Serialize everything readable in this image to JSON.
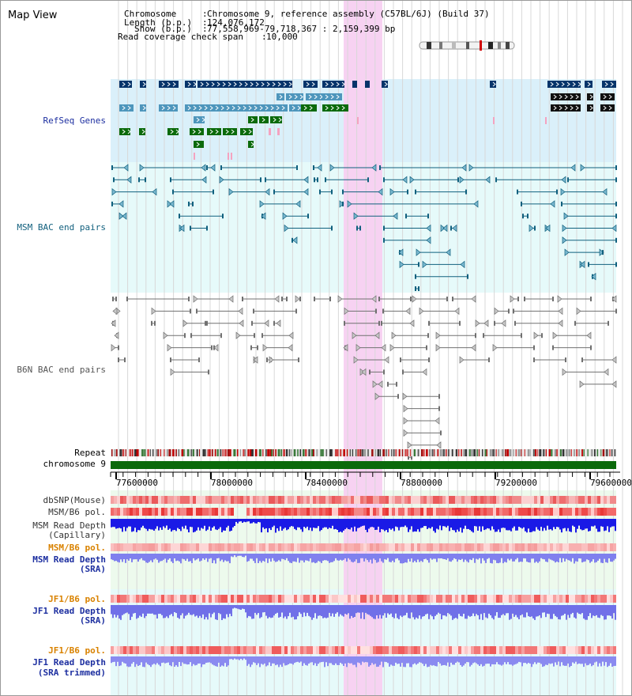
{
  "page": {
    "title": "Map View"
  },
  "header": {
    "chromosome_label": "Chromosome",
    "chromosome_value": "Chromosome 9, reference assembly (C57BL/6J) (Build 37)",
    "length_label": "Length (b.p.)",
    "length_value": "124,076,172",
    "show_label": "Show (b.p.)",
    "show_value": "77,558,969-79,718,367 : 2,159,399 bp",
    "coverage_label": "Read coverage check span",
    "coverage_value": "10,000"
  },
  "tracks": {
    "refseq": "RefSeq Genes",
    "msm_bac": "MSM BAC end pairs",
    "b6n_bac": "B6N BAC end pairs",
    "repeat": "Repeat",
    "chromosome": "chromosome 9",
    "dbsnp": "dbSNP(Mouse)",
    "msm_b6_pol_1": "MSM/B6 pol.",
    "msm_depth_cap": [
      "MSM Read Depth",
      "(Capillary)"
    ],
    "msm_b6_pol_2": "MSM/B6 pol.",
    "msm_depth_sra": [
      "MSM Read Depth",
      "(SRA)"
    ],
    "jf1_b6_pol_1": "JF1/B6 pol.",
    "jf1_depth_sra": [
      "JF1 Read Depth",
      "(SRA)"
    ],
    "jf1_b6_pol_2": "JF1/B6 pol.",
    "jf1_depth_trim": [
      "JF1 Read Depth",
      "(SRA trimmed)"
    ]
  },
  "axis": {
    "ticks": [
      "77600000",
      "78000000",
      "78400000",
      "78800000",
      "79200000",
      "79600000"
    ]
  },
  "colors": {
    "refseq_bg": "#daf0fa",
    "msm_bg": "#e6fafa",
    "depth_bg": "#edfaed",
    "highlight": "#f7d2f2",
    "gene_dark": "#06346a",
    "gene_light": "#4e96bc",
    "gene_green": "#0b6a0b",
    "msm_bar": "#10607e",
    "b6n_bar": "#707070",
    "track_blue": "#1d2fa0",
    "track_orange": "#d98200",
    "chrom_green": "#0b6a0b"
  }
}
